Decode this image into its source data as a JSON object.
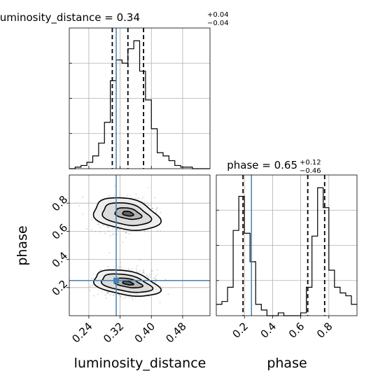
{
  "chart_data": {
    "type": "corner",
    "grid": true,
    "parameters": [
      {
        "name": "luminosity_distance",
        "median": "0.34",
        "plus": "+0.04",
        "minus": "−0.04",
        "truth": 0.31,
        "quantiles": [
          0.3,
          0.34,
          0.38
        ],
        "range": [
          0.19,
          0.55
        ],
        "ticks": [
          "0.24",
          "0.32",
          "0.40",
          "0.48"
        ]
      },
      {
        "name": "phase",
        "median": "0.65",
        "plus": "+0.12",
        "minus": "−0.46",
        "truth": 0.25,
        "quantiles": [
          0.19,
          0.65,
          0.77
        ],
        "range": [
          0.0,
          1.0
        ],
        "ticks": [
          "0.2",
          "0.4",
          "0.6",
          "0.8"
        ]
      }
    ],
    "hist_luminosity_distance": {
      "bin_edges": [
        0.19,
        0.205,
        0.22,
        0.235,
        0.25,
        0.265,
        0.28,
        0.295,
        0.31,
        0.325,
        0.34,
        0.355,
        0.37,
        0.385,
        0.4,
        0.415,
        0.43,
        0.445,
        0.46,
        0.475,
        0.49,
        0.505,
        0.52,
        0.535,
        0.55
      ],
      "counts": [
        0,
        1,
        2,
        4,
        8,
        16,
        29,
        55,
        68,
        66,
        75,
        80,
        61,
        43,
        25,
        10,
        8,
        5,
        2,
        1,
        1,
        0,
        0,
        0
      ]
    },
    "hist_phase": {
      "bin_edges": [
        0.0,
        0.04,
        0.08,
        0.12,
        0.16,
        0.2,
        0.24,
        0.28,
        0.32,
        0.36,
        0.4,
        0.44,
        0.48,
        0.52,
        0.56,
        0.6,
        0.64,
        0.68,
        0.72,
        0.76,
        0.8,
        0.84,
        0.88,
        0.92,
        0.96,
        1.0
      ],
      "counts": [
        4,
        5,
        10,
        30,
        42,
        29,
        19,
        4,
        2,
        0,
        0,
        1,
        0,
        0,
        0,
        1,
        10,
        28,
        45,
        38,
        16,
        10,
        8,
        7,
        4
      ]
    },
    "scatter_modes": [
      {
        "x": 0.335,
        "y": 0.72,
        "sx": 0.034,
        "sy": 0.058
      },
      {
        "x": 0.335,
        "y": 0.23,
        "sx": 0.034,
        "sy": 0.045
      }
    ],
    "contour_levels": [
      {
        "level": "outer",
        "modes": [
          {
            "x": 0.335,
            "y": 0.72,
            "rx": 0.085,
            "ry": 0.11
          },
          {
            "x": 0.335,
            "y": 0.23,
            "rx": 0.085,
            "ry": 0.085
          }
        ]
      },
      {
        "level": "middle",
        "modes": [
          {
            "x": 0.335,
            "y": 0.72,
            "rx": 0.062,
            "ry": 0.076
          },
          {
            "x": 0.335,
            "y": 0.23,
            "rx": 0.065,
            "ry": 0.058
          }
        ]
      },
      {
        "level": "inner",
        "modes": [
          {
            "x": 0.34,
            "y": 0.725,
            "rx": 0.034,
            "ry": 0.038
          },
          {
            "x": 0.34,
            "y": 0.232,
            "rx": 0.036,
            "ry": 0.03
          }
        ]
      },
      {
        "level": "core",
        "modes": [
          {
            "x": 0.34,
            "y": 0.725,
            "rx": 0.014,
            "ry": 0.016
          },
          {
            "x": 0.34,
            "y": 0.232,
            "rx": 0.014,
            "ry": 0.012
          }
        ]
      }
    ],
    "contour_fills": [
      "#ededed",
      "#d9d9d9",
      "#b0b0b0",
      "#5a5a5a"
    ],
    "colors": {
      "truth": "#4682b4",
      "hist": "#000000",
      "points": "#9a9a9a"
    }
  }
}
